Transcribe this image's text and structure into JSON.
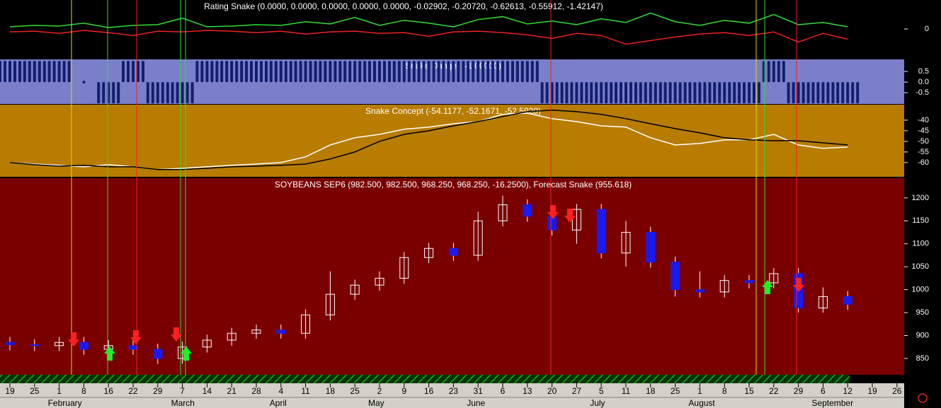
{
  "chart_data": [
    {
      "type": "line",
      "title": "Rating Snake (0.0000, 0.0000, 0.0000, 0.0000, 0.0000, -0.02902, -0.20720, -0.62613, -0.55912, -1.42147)",
      "background": "#000000",
      "ylim": [
        -4,
        4
      ],
      "yticks": [
        0
      ],
      "series": [
        {
          "color": "#33dd33",
          "values": [
            0.3,
            0.5,
            0.4,
            0.8,
            0.2,
            0.5,
            0.6,
            1.5,
            0.3,
            0.4,
            0.6,
            0.5,
            1.0,
            0.7,
            1.6,
            0.5,
            1.2,
            0.8,
            0.3,
            1.3,
            1.7,
            0.7,
            1.1,
            0.6,
            1.4,
            0.9,
            2.2,
            1.0,
            0.5,
            1.2,
            0.8,
            2.0,
            0.6,
            0.9,
            0.3,
            null,
            null
          ]
        },
        {
          "color": "#ee2222",
          "values": [
            -0.4,
            -0.3,
            -0.6,
            -0.2,
            -0.5,
            -0.9,
            -0.3,
            -0.4,
            -0.2,
            -0.3,
            -0.5,
            -0.3,
            -0.7,
            -0.4,
            -0.3,
            -0.6,
            -0.5,
            -1.0,
            -0.4,
            -0.3,
            -0.5,
            -0.8,
            -1.3,
            -0.6,
            -0.9,
            -2.1,
            -1.6,
            -1.1,
            -0.7,
            -0.5,
            -0.9,
            -0.4,
            -1.8,
            -0.6,
            -1.4,
            null,
            null
          ]
        }
      ]
    },
    {
      "type": "bar",
      "title": "Snake Danger (-1.00000)",
      "background": "#7b7fc9",
      "color": "#141e6e",
      "ylim": [
        -1.03,
        1.07
      ],
      "yticks": [
        0.5,
        {
          "value": 0,
          "label": "0.0"
        },
        -0.5
      ],
      "values": [
        1,
        1,
        1,
        0,
        -1,
        1,
        -1,
        -1,
        1,
        1,
        1,
        1,
        1,
        1,
        1,
        1,
        1,
        1,
        1,
        1,
        1,
        1,
        -1,
        -1,
        -1,
        -1,
        -1,
        -1,
        -1,
        -1,
        -1,
        1,
        -1,
        -1,
        -1,
        null,
        null
      ]
    },
    {
      "type": "line",
      "title": "Snake Concept (-54.1177, -52.1671, -52.5920)",
      "background": "#b77c00",
      "ylim": [
        -66.7,
        -32.7
      ],
      "yticks": [
        -40,
        -45,
        -50,
        -55,
        -60
      ],
      "series": [
        {
          "color": "#ffffff",
          "values": [
            -60,
            -60.7,
            -61.3,
            -62,
            -61,
            -62,
            -63.3,
            -62.7,
            -62,
            -61.3,
            -60.7,
            -60,
            -57.3,
            -51.7,
            -48.3,
            -46.7,
            -44.3,
            -43.3,
            -41.7,
            -40.7,
            -37.3,
            -36.7,
            -39.3,
            -40.7,
            -42.7,
            -43.3,
            -48.3,
            -51.7,
            -51,
            -49.3,
            -49.3,
            -46.7,
            -51.7,
            -53.3,
            -52.7,
            null,
            null
          ]
        },
        {
          "color": "#000000",
          "values": [
            -60,
            -61,
            -61.7,
            -61.3,
            -62,
            -62,
            -63.3,
            -63.3,
            -62.7,
            -62,
            -61.7,
            -61.3,
            -60.7,
            -58.3,
            -55,
            -50,
            -46.7,
            -45,
            -42.7,
            -40.7,
            -38.3,
            -36,
            -35.3,
            -36,
            -37.3,
            -39.3,
            -41.7,
            -44,
            -46,
            -48.3,
            -49.3,
            -49.7,
            -49.7,
            -50.7,
            -51.7,
            null,
            null
          ]
        }
      ]
    },
    {
      "type": "candlestick",
      "title": "SOYBEANS SEP6 (982.500, 982.500, 968.250, 968.250, -16.2500), Forecast Snake (955.618)",
      "background": "#7a0000",
      "up_color": "#ffffff",
      "down_color": "#1a1aee",
      "ylim": [
        814.5,
        1243
      ],
      "yticks": [
        1200,
        1150,
        1100,
        1050,
        1000,
        950,
        900,
        850
      ],
      "categories": [
        "19",
        "25",
        "1",
        "8",
        "16",
        "22",
        "29",
        "7",
        "14",
        "21",
        "28",
        "4",
        "11",
        "18",
        "25",
        "2",
        "9",
        "16",
        "23",
        "31",
        "6",
        "13",
        "20",
        "27",
        "5",
        "11",
        "18",
        "25",
        "1",
        "8",
        "15",
        "22",
        "29",
        "6",
        "12",
        "19",
        "26"
      ],
      "months": [
        null,
        null,
        "February",
        null,
        null,
        null,
        null,
        "March",
        null,
        null,
        null,
        "April",
        null,
        null,
        null,
        "May",
        null,
        null,
        null,
        "June",
        null,
        null,
        null,
        null,
        "July",
        null,
        null,
        null,
        "August",
        null,
        null,
        null,
        null,
        "September",
        null,
        null,
        null
      ],
      "open": [
        885,
        880,
        878,
        885,
        870,
        878,
        870,
        850,
        875,
        890,
        905,
        912,
        905,
        945,
        990,
        1010,
        1025,
        1070,
        1090,
        1075,
        1150,
        1185,
        1160,
        1130,
        1175,
        1080,
        1125,
        1060,
        1000,
        995,
        1020,
        1015,
        1035,
        960,
        985,
        null,
        null
      ],
      "high": [
        897,
        892,
        897,
        897,
        890,
        890,
        882,
        887,
        902,
        917,
        924,
        924,
        957,
        1040,
        1022,
        1040,
        1082,
        1102,
        1102,
        1170,
        1205,
        1197,
        1172,
        1187,
        1187,
        1150,
        1137,
        1072,
        1040,
        1032,
        1032,
        1047,
        1047,
        1005,
        997,
        null,
        null
      ],
      "low": [
        868,
        866,
        866,
        858,
        858,
        858,
        838,
        838,
        863,
        878,
        893,
        893,
        893,
        933,
        978,
        998,
        1013,
        1058,
        1063,
        1063,
        1138,
        1148,
        1118,
        1100,
        1068,
        1050,
        1048,
        985,
        983,
        983,
        1003,
        1003,
        950,
        950,
        956,
        null,
        null
      ],
      "close": [
        880,
        878,
        885,
        870,
        878,
        870,
        850,
        875,
        890,
        905,
        912,
        905,
        945,
        990,
        1010,
        1025,
        1070,
        1090,
        1075,
        1150,
        1185,
        1160,
        1130,
        1175,
        1080,
        1125,
        1060,
        1000,
        995,
        1020,
        1015,
        1035,
        960,
        985,
        968,
        null,
        null
      ]
    }
  ]
}
